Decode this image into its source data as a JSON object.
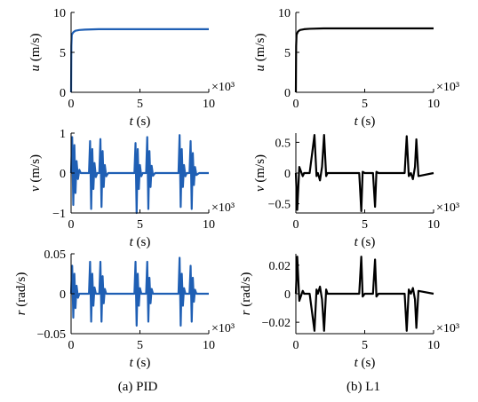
{
  "colors": {
    "pid": "#1f5fb4",
    "l1": "#000000"
  },
  "x_multiplier": "×10³",
  "captions": {
    "left": "(a) PID",
    "right": "(b) L1"
  },
  "chart_data": [
    {
      "type": "line",
      "panel": "pid-u",
      "color": "#1f5fb4",
      "xlabel": "t (s)",
      "ylabel": "u (m/s)",
      "xlim": [
        0,
        10
      ],
      "ylim": [
        0,
        10
      ],
      "xticks": [
        "0",
        "5",
        "10"
      ],
      "yticks": [
        "0",
        "5",
        "10"
      ],
      "x_unit_multiplier": "×10³",
      "series": [
        {
          "x": [
            0,
            0.02,
            0.05,
            0.15,
            0.3,
            0.6,
            1.0,
            2.0,
            4.0,
            6.0,
            8.0,
            10.0
          ],
          "values": [
            0,
            5.8,
            7.2,
            7.5,
            7.7,
            7.8,
            7.85,
            7.9,
            7.9,
            7.9,
            7.9,
            7.9
          ]
        }
      ]
    },
    {
      "type": "line",
      "panel": "l1-u",
      "color": "#000000",
      "xlabel": "t (s)",
      "ylabel": "u (m/s)",
      "xlim": [
        0,
        10
      ],
      "ylim": [
        0,
        10
      ],
      "xticks": [
        "0",
        "5",
        "10"
      ],
      "yticks": [
        "0",
        "5",
        "10"
      ],
      "x_unit_multiplier": "×10³",
      "series": [
        {
          "x": [
            0,
            0.02,
            0.05,
            0.15,
            0.3,
            0.6,
            1.0,
            2.0,
            4.0,
            6.0,
            8.0,
            10.0
          ],
          "values": [
            0,
            5.8,
            7.2,
            7.6,
            7.8,
            7.9,
            7.95,
            8.0,
            8.0,
            8.0,
            8.0,
            8.0
          ]
        }
      ]
    },
    {
      "type": "line",
      "panel": "pid-v",
      "color": "#1f5fb4",
      "xlabel": "t (s)",
      "ylabel": "v (m/s)",
      "xlim": [
        0,
        10
      ],
      "ylim": [
        -1,
        1
      ],
      "xticks": [
        "0",
        "5",
        "10"
      ],
      "yticks": [
        "-1",
        "0",
        "1"
      ],
      "x_unit_multiplier": "×10³",
      "series": [
        {
          "x": [
            0,
            0.08,
            0.16,
            0.24,
            0.32,
            0.4,
            0.5,
            0.6,
            0.7,
            1.0,
            1.3,
            1.38,
            1.46,
            1.54,
            1.62,
            1.7,
            1.8,
            1.9,
            2.05,
            2.13,
            2.21,
            2.29,
            2.37,
            2.45,
            2.55,
            2.7,
            3.0,
            4.6,
            4.68,
            4.76,
            4.84,
            4.92,
            5.0,
            5.1,
            5.2,
            5.45,
            5.53,
            5.61,
            5.69,
            5.77,
            5.85,
            5.95,
            6.1,
            6.5,
            7.8,
            7.88,
            7.96,
            8.04,
            8.12,
            8.2,
            8.3,
            8.4,
            8.6,
            8.68,
            8.76,
            8.84,
            8.92,
            9.0,
            9.1,
            9.3,
            10.0
          ],
          "values": [
            0,
            0.9,
            -0.8,
            0.7,
            -0.5,
            0.3,
            -0.15,
            0.08,
            0,
            0,
            0,
            0.8,
            -0.9,
            0.6,
            -0.4,
            0.25,
            -0.1,
            0,
            0,
            0.85,
            -0.85,
            0.55,
            -0.35,
            0.2,
            -0.08,
            0,
            0,
            0,
            0.75,
            -1.0,
            0.6,
            -0.4,
            0.2,
            -0.08,
            0,
            0,
            0.9,
            -0.9,
            0.55,
            -0.35,
            0.18,
            -0.07,
            0,
            0,
            0,
            0.95,
            -0.85,
            0.6,
            -0.35,
            0.2,
            -0.08,
            0,
            0,
            0.8,
            -0.9,
            0.5,
            -0.3,
            0.15,
            -0.05,
            0,
            0
          ]
        }
      ]
    },
    {
      "type": "line",
      "panel": "l1-v",
      "color": "#000000",
      "xlabel": "t (s)",
      "ylabel": "v (m/s)",
      "xlim": [
        0,
        10
      ],
      "ylim": [
        -0.65,
        0.65
      ],
      "xticks": [
        "0",
        "5",
        "10"
      ],
      "yticks": [
        "-0.5",
        "0",
        "0.5"
      ],
      "x_unit_multiplier": "×10³",
      "series": [
        {
          "x": [
            0,
            0.1,
            0.25,
            0.5,
            0.6,
            1.0,
            1.35,
            1.5,
            1.6,
            1.75,
            1.9,
            2.05,
            2.2,
            2.3,
            2.6,
            4.6,
            4.75,
            4.85,
            5.0,
            5.6,
            5.75,
            5.85,
            6.0,
            7.9,
            8.05,
            8.2,
            8.35,
            8.5,
            8.65,
            8.75,
            8.9,
            10.0
          ],
          "values": [
            0,
            -0.6,
            0.1,
            -0.05,
            0,
            0,
            0.62,
            -0.05,
            0,
            -0.12,
            0.1,
            0.62,
            -0.05,
            0,
            0,
            0,
            -0.62,
            0.02,
            0,
            0,
            -0.55,
            0.02,
            0,
            0,
            0.6,
            -0.05,
            0,
            -0.1,
            0.1,
            0.55,
            -0.05,
            0
          ]
        }
      ]
    },
    {
      "type": "line",
      "panel": "pid-r",
      "color": "#1f5fb4",
      "xlabel": "t (s)",
      "ylabel": "r (rad/s)",
      "xlim": [
        0,
        10
      ],
      "ylim": [
        -0.05,
        0.05
      ],
      "xticks": [
        "0",
        "5",
        "10"
      ],
      "yticks": [
        "-0.05",
        "0",
        "0.05"
      ],
      "x_unit_multiplier": "×10³",
      "series": [
        {
          "x": [
            0,
            0.08,
            0.16,
            0.24,
            0.32,
            0.4,
            0.5,
            0.6,
            1.0,
            1.3,
            1.38,
            1.46,
            1.54,
            1.62,
            1.7,
            1.8,
            2.05,
            2.13,
            2.21,
            2.29,
            2.37,
            2.45,
            2.55,
            3.0,
            4.6,
            4.68,
            4.76,
            4.84,
            4.92,
            5.0,
            5.1,
            5.45,
            5.53,
            5.61,
            5.69,
            5.77,
            5.85,
            5.95,
            6.5,
            7.8,
            7.88,
            7.96,
            8.04,
            8.12,
            8.2,
            8.3,
            8.6,
            8.68,
            8.76,
            8.84,
            8.92,
            9.0,
            9.1,
            10.0
          ],
          "values": [
            0,
            0.035,
            -0.03,
            0.025,
            -0.018,
            0.01,
            -0.005,
            0,
            0,
            0,
            0.04,
            -0.035,
            0.025,
            -0.015,
            0.008,
            0,
            0,
            0.04,
            -0.035,
            0.022,
            -0.012,
            0.006,
            0,
            0,
            0,
            0.04,
            -0.04,
            0.025,
            -0.015,
            0.007,
            0,
            0,
            0.04,
            -0.035,
            0.02,
            -0.012,
            0.006,
            0,
            0,
            0,
            0.045,
            -0.04,
            0.025,
            -0.015,
            0.007,
            0,
            0,
            0.035,
            -0.035,
            0.02,
            -0.01,
            0.005,
            0,
            0
          ]
        }
      ]
    },
    {
      "type": "line",
      "panel": "l1-r",
      "color": "#000000",
      "xlabel": "t (s)",
      "ylabel": "r (rad/s)",
      "xlim": [
        0,
        10
      ],
      "ylim": [
        -0.028,
        0.028
      ],
      "xticks": [
        "0",
        "5",
        "10"
      ],
      "yticks": [
        "-0.02",
        "0",
        "0.02"
      ],
      "x_unit_multiplier": "×10³",
      "series": [
        {
          "x": [
            0,
            0.1,
            0.25,
            0.5,
            0.6,
            1.0,
            1.35,
            1.5,
            1.6,
            1.75,
            1.9,
            2.05,
            2.2,
            2.3,
            2.6,
            4.6,
            4.75,
            4.85,
            5.0,
            5.6,
            5.75,
            5.85,
            6.0,
            7.9,
            8.05,
            8.2,
            8.35,
            8.5,
            8.65,
            8.75,
            8.9,
            10.0
          ],
          "values": [
            0,
            0.026,
            -0.005,
            0.002,
            0,
            0,
            -0.026,
            0.003,
            0,
            0.005,
            -0.004,
            -0.026,
            0.003,
            0,
            0,
            0,
            0.026,
            -0.002,
            0,
            0,
            0.024,
            -0.002,
            0,
            0,
            -0.026,
            0.003,
            0,
            0.004,
            -0.004,
            -0.024,
            0.002,
            0
          ]
        }
      ]
    }
  ]
}
